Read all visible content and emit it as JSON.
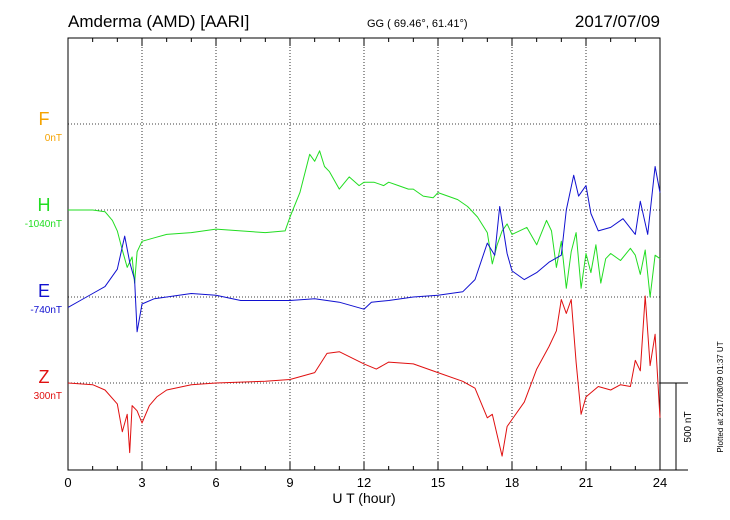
{
  "header": {
    "station": "Amderma (AMD)  [AARI]",
    "coords": "GG ( 69.46°,  61.41°)",
    "date": "2017/07/09"
  },
  "footer_note": "Plotted at 2017/08/09 01:37 UT",
  "colors": {
    "F": "#f5a300",
    "H": "#22dd22",
    "E": "#1010d0",
    "Z": "#e01010",
    "axis": "#000000",
    "grid": "#000000"
  },
  "chart_data": {
    "type": "line",
    "title": "Amderma (AMD)  [AARI]",
    "xlabel": "U T (hour)",
    "x_ticks": [
      "0",
      "3",
      "6",
      "9",
      "12",
      "15",
      "18",
      "21",
      "24"
    ],
    "xlim": [
      0,
      24
    ],
    "scale_bar": {
      "label": "500 nT",
      "value_nT": 500
    },
    "grid": true,
    "channels": [
      {
        "name": "F",
        "baseline_label": "0nT",
        "baseline_nT": 0
      },
      {
        "name": "H",
        "baseline_label": "-1040nT",
        "baseline_nT": -1040
      },
      {
        "name": "E",
        "baseline_label": "-740nT",
        "baseline_nT": -740
      },
      {
        "name": "Z",
        "baseline_label": "300nT",
        "baseline_nT": 300
      }
    ],
    "series": [
      {
        "name": "H",
        "x": [
          0,
          1,
          1.5,
          1.8,
          2.0,
          2.2,
          2.4,
          2.6,
          2.7,
          2.8,
          3.0,
          3.5,
          4,
          5,
          6,
          7,
          8,
          8.8,
          9.0,
          9.4,
          9.8,
          10.0,
          10.2,
          10.4,
          10.6,
          11.0,
          11.4,
          11.8,
          12.0,
          12.4,
          12.8,
          13.0,
          13.4,
          13.8,
          14.0,
          14.4,
          14.8,
          15.0,
          15.4,
          15.8,
          16.2,
          16.6,
          17.0,
          17.2,
          17.4,
          17.6,
          17.8,
          18.0,
          18.3,
          18.6,
          19.0,
          19.4,
          19.6,
          19.8,
          20.0,
          20.2,
          20.4,
          20.6,
          20.8,
          21.0,
          21.2,
          21.4,
          21.6,
          21.8,
          22.0,
          22.4,
          22.8,
          23.0,
          23.2,
          23.4,
          23.6,
          23.8,
          24.0
        ],
        "y": [
          0,
          0,
          -10,
          -60,
          -120,
          -230,
          -330,
          -270,
          -420,
          -240,
          -180,
          -160,
          -140,
          -130,
          -110,
          -120,
          -130,
          -120,
          -40,
          100,
          320,
          280,
          340,
          250,
          220,
          120,
          190,
          140,
          160,
          160,
          140,
          160,
          140,
          120,
          120,
          80,
          70,
          100,
          80,
          60,
          20,
          -40,
          -130,
          -310,
          -200,
          -120,
          -80,
          -140,
          -120,
          -100,
          -200,
          -60,
          -120,
          -330,
          -180,
          -450,
          -240,
          -130,
          -450,
          -250,
          -360,
          -200,
          -420,
          -280,
          -250,
          -290,
          -220,
          -260,
          -370,
          -230,
          -500,
          -260,
          -280
        ]
      },
      {
        "name": "E",
        "x": [
          0,
          0.5,
          1.0,
          1.5,
          2.0,
          2.3,
          2.5,
          2.7,
          2.8,
          3.0,
          3.5,
          4,
          5,
          6,
          7,
          8,
          9,
          10,
          10.5,
          11,
          12,
          12.3,
          13,
          14,
          15,
          16,
          16.5,
          17.0,
          17.3,
          17.5,
          17.8,
          18.0,
          18.5,
          19.0,
          19.5,
          20.0,
          20.2,
          20.5,
          20.7,
          21.0,
          21.2,
          21.5,
          22.0,
          22.5,
          23.0,
          23.2,
          23.5,
          23.8,
          24.0
        ],
        "y": [
          -60,
          -20,
          20,
          60,
          160,
          350,
          200,
          100,
          -200,
          -40,
          -10,
          0,
          20,
          10,
          -20,
          -20,
          -20,
          -10,
          -20,
          -30,
          -70,
          -30,
          -20,
          0,
          10,
          30,
          100,
          310,
          240,
          520,
          250,
          150,
          100,
          140,
          200,
          240,
          500,
          700,
          580,
          640,
          480,
          380,
          400,
          450,
          360,
          550,
          360,
          750,
          600
        ]
      },
      {
        "name": "Z",
        "x": [
          0,
          1,
          1.5,
          2.0,
          2.2,
          2.4,
          2.5,
          2.6,
          2.8,
          3.0,
          3.3,
          3.6,
          4,
          5,
          6,
          7,
          8,
          9,
          10,
          10.5,
          11,
          12,
          12.5,
          13,
          14,
          15,
          16,
          16.5,
          17.0,
          17.2,
          17.4,
          17.6,
          17.8,
          18.0,
          18.5,
          19.0,
          19.5,
          19.8,
          20.0,
          20.2,
          20.4,
          20.6,
          20.8,
          21.0,
          21.5,
          22.0,
          22.4,
          22.8,
          23.0,
          23.2,
          23.4,
          23.6,
          23.8,
          24.0
        ],
        "y": [
          0,
          -10,
          -40,
          -120,
          -280,
          -180,
          -400,
          -130,
          -160,
          -230,
          -130,
          -80,
          -40,
          -10,
          0,
          5,
          10,
          20,
          60,
          170,
          180,
          110,
          80,
          120,
          110,
          60,
          10,
          -30,
          -200,
          -180,
          -300,
          -420,
          -250,
          -210,
          -110,
          80,
          210,
          300,
          480,
          400,
          480,
          120,
          -180,
          -80,
          -20,
          -40,
          -10,
          -20,
          130,
          70,
          500,
          100,
          280,
          -200
        ]
      }
    ]
  }
}
